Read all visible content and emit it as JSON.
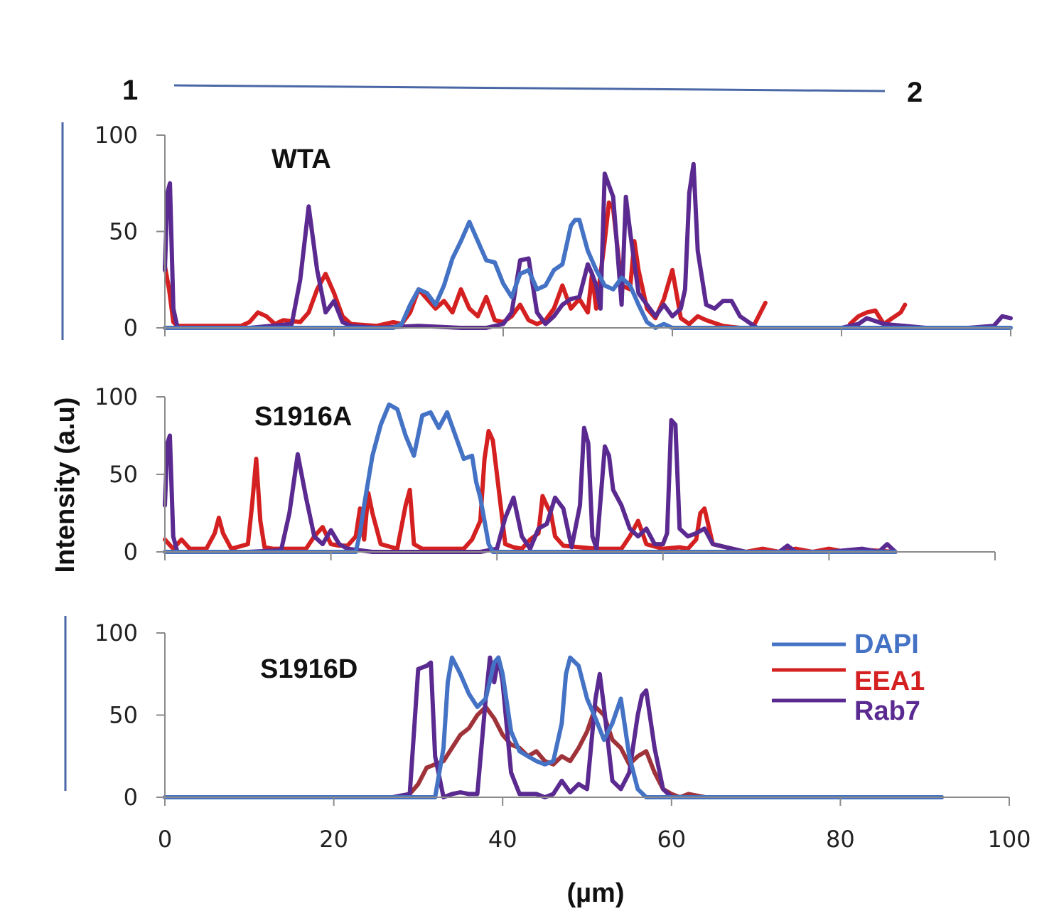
{
  "chart_data": {
    "type": "line",
    "xlabel": "(µm)",
    "ylabel": "Intensity (a.u)",
    "xlim": [
      0,
      100
    ],
    "x_ticks": [
      "0",
      "20",
      "40",
      "60",
      "80",
      "100"
    ],
    "line_markers": {
      "start": "1",
      "end": "2"
    },
    "legend": {
      "placement": "right of bottom panel",
      "entries": [
        {
          "name": "DAPI",
          "color": "#4472C4"
        },
        {
          "name": "EEA1",
          "color": "#D42020"
        },
        {
          "name": "Rab7",
          "color": "#5A2A91"
        }
      ]
    },
    "panels": [
      {
        "title": "WTA",
        "ylim": [
          0,
          100
        ],
        "y_ticks": [
          "0",
          "50",
          "100"
        ],
        "series": [
          {
            "name": "EEA1",
            "color": "#D42020",
            "x": [
              0,
              0.5,
              1,
              1.5,
              3,
              6,
              9,
              10,
              11,
              12,
              13,
              14,
              16,
              17,
              18,
              19,
              20,
              21,
              22,
              25,
              27,
              28,
              29,
              30,
              31,
              32,
              33,
              34,
              35,
              36,
              37,
              38,
              39,
              40,
              41,
              42,
              43,
              44,
              45,
              46,
              47,
              48,
              49,
              50,
              50.5,
              51,
              52,
              52.5,
              53,
              54,
              55,
              55.5,
              56,
              57,
              58,
              59,
              60,
              61,
              62,
              63,
              64,
              66,
              68,
              69.5,
              71
            ],
            "y": [
              32,
              20,
              3,
              1,
              1,
              1,
              1,
              3,
              8,
              6,
              2,
              4,
              3,
              8,
              20,
              28,
              18,
              6,
              2,
              1,
              3,
              2,
              8,
              20,
              15,
              10,
              14,
              8,
              20,
              10,
              6,
              16,
              4,
              3,
              6,
              12,
              4,
              2,
              4,
              10,
              22,
              10,
              15,
              8,
              28,
              10,
              45,
              65,
              62,
              22,
              20,
              45,
              30,
              10,
              5,
              15,
              30,
              5,
              2,
              6,
              4,
              1,
              0,
              0,
              13
            ]
          },
          {
            "name": "EEA1b",
            "color": "#D42020",
            "x": [
              81,
              82,
              83,
              84,
              85,
              86,
              87,
              87.5
            ],
            "y": [
              2,
              6,
              8,
              9,
              2,
              5,
              8,
              12
            ]
          },
          {
            "name": "Rab7",
            "color": "#5A2A91",
            "x": [
              0,
              0.3,
              0.6,
              1,
              1.5,
              3,
              10,
              15,
              16,
              17,
              18,
              19,
              20,
              21,
              22,
              25,
              30,
              35,
              38,
              40,
              41,
              42,
              43,
              44,
              45,
              46,
              47,
              48,
              49,
              50,
              50.5,
              51,
              51.5,
              52,
              53,
              54,
              54.5,
              55,
              56,
              57,
              58,
              59,
              60,
              61,
              61.5,
              62,
              62.5,
              63,
              64,
              65,
              66,
              67,
              68,
              70,
              80,
              82,
              83,
              85,
              90,
              95,
              98,
              99,
              100
            ],
            "y": [
              30,
              70,
              75,
              10,
              0,
              0,
              0,
              2,
              25,
              63,
              30,
              8,
              14,
              3,
              1,
              0,
              1,
              0,
              0,
              2,
              8,
              35,
              36,
              8,
              2,
              6,
              12,
              15,
              16,
              33,
              28,
              22,
              10,
              80,
              68,
              12,
              68,
              50,
              18,
              12,
              6,
              12,
              6,
              10,
              20,
              70,
              85,
              40,
              12,
              10,
              14,
              14,
              6,
              0,
              0,
              2,
              5,
              2,
              0,
              0,
              1,
              6,
              5
            ]
          },
          {
            "name": "DAPI",
            "color": "#4472C4",
            "x": [
              0,
              27,
              28,
              29,
              30,
              31,
              32,
              33,
              34,
              35,
              36,
              37,
              38,
              39,
              40,
              41,
              42,
              43,
              44,
              45,
              46,
              47,
              48,
              48.5,
              49,
              50,
              51,
              52,
              53,
              54,
              55,
              56,
              57,
              58,
              59,
              60,
              62,
              70,
              80,
              90,
              100
            ],
            "y": [
              0,
              0,
              2,
              12,
              20,
              18,
              12,
              22,
              36,
              45,
              55,
              45,
              35,
              34,
              23,
              16,
              28,
              30,
              20,
              22,
              30,
              33,
              53,
              56,
              56,
              40,
              30,
              22,
              20,
              26,
              22,
              12,
              3,
              0,
              2,
              0,
              0,
              0,
              0,
              0,
              0
            ]
          }
        ]
      },
      {
        "title": "S1916A",
        "ylim": [
          0,
          100
        ],
        "y_ticks": [
          "0",
          "50",
          "100"
        ],
        "series": [
          {
            "name": "EEA1",
            "color": "#D42020",
            "x": [
              0,
              0.5,
              1,
              2,
              3,
              5,
              6,
              6.5,
              7,
              8,
              10,
              10.5,
              11,
              11.5,
              12,
              13,
              14,
              15,
              17,
              18,
              19,
              20,
              21,
              22,
              23,
              23.5,
              24,
              24.5,
              25,
              26,
              28,
              29,
              29.5,
              30,
              31,
              33,
              35,
              36,
              37,
              38,
              38.5,
              39,
              39.5,
              40,
              41,
              42,
              43,
              44,
              45,
              45.5,
              46,
              46.5,
              47,
              48,
              50,
              52,
              55,
              56,
              57,
              58,
              60,
              62,
              63,
              64,
              64.5,
              65,
              66,
              70,
              72,
              74,
              76,
              78,
              80,
              82,
              85,
              88
            ],
            "y": [
              8,
              5,
              2,
              8,
              2,
              2,
              12,
              22,
              12,
              2,
              5,
              30,
              60,
              20,
              3,
              2,
              2,
              2,
              2,
              10,
              16,
              5,
              4,
              4,
              10,
              28,
              8,
              38,
              25,
              5,
              2,
              30,
              40,
              5,
              2,
              2,
              2,
              2,
              8,
              20,
              60,
              78,
              72,
              50,
              5,
              3,
              2,
              8,
              12,
              36,
              30,
              25,
              10,
              4,
              3,
              2,
              2,
              10,
              20,
              5,
              2,
              3,
              2,
              8,
              25,
              28,
              5,
              0,
              2,
              0,
              2,
              0,
              2,
              0,
              1,
              0
            ]
          },
          {
            "name": "Rab7",
            "color": "#5A2A91",
            "x": [
              0,
              0.3,
              0.6,
              1,
              1.5,
              3,
              10,
              14,
              15,
              16,
              17,
              18,
              19,
              20,
              21,
              22,
              25,
              30,
              35,
              38,
              40,
              41,
              42,
              43,
              44,
              45,
              46,
              47,
              48,
              49,
              50,
              50.5,
              51,
              51.5,
              52,
              53,
              53.5,
              54,
              55,
              56,
              57,
              58,
              59,
              60,
              60.5,
              61,
              61.5,
              62,
              63,
              64,
              65,
              66,
              70,
              74,
              75,
              76,
              80,
              84,
              86,
              87,
              88
            ],
            "y": [
              30,
              70,
              75,
              10,
              0,
              0,
              0,
              1,
              25,
              63,
              35,
              10,
              5,
              14,
              5,
              2,
              0,
              0,
              0,
              0,
              2,
              22,
              35,
              10,
              2,
              15,
              18,
              35,
              28,
              3,
              30,
              80,
              70,
              10,
              2,
              68,
              62,
              40,
              30,
              15,
              10,
              15,
              5,
              5,
              12,
              85,
              82,
              15,
              10,
              12,
              15,
              5,
              0,
              0,
              4,
              0,
              0,
              2,
              0,
              5,
              0
            ]
          },
          {
            "name": "DAPI",
            "color": "#4472C4",
            "x": [
              0,
              23,
              23.5,
              24,
              25,
              26,
              27,
              28,
              29,
              30,
              31,
              32,
              33,
              34,
              35,
              36,
              37,
              37.5,
              38,
              39,
              39.5,
              40,
              45,
              50,
              55,
              60,
              70,
              80,
              88
            ],
            "y": [
              0,
              0,
              12,
              30,
              62,
              82,
              95,
              92,
              75,
              62,
              88,
              90,
              80,
              90,
              75,
              60,
              62,
              45,
              35,
              5,
              0,
              0,
              0,
              0,
              0,
              0,
              0,
              0,
              0
            ]
          }
        ]
      },
      {
        "title": "S1916D",
        "ylim": [
          0,
          100
        ],
        "y_ticks": [
          "0",
          "50",
          "100"
        ],
        "series": [
          {
            "name": "EEA1",
            "color": "#A0333A",
            "x": [
              0,
              27,
              28,
              29,
              30,
              31,
              32,
              33,
              34,
              35,
              36,
              37,
              38,
              39,
              40,
              41,
              42,
              43,
              44,
              45,
              46,
              47,
              48,
              49,
              50,
              51,
              52,
              53,
              54,
              55,
              56,
              57,
              58,
              59,
              60,
              61,
              62,
              63,
              64,
              70,
              92
            ],
            "y": [
              0,
              0,
              1,
              2,
              8,
              18,
              20,
              22,
              30,
              38,
              42,
              50,
              55,
              48,
              38,
              32,
              30,
              25,
              28,
              22,
              20,
              25,
              22,
              30,
              40,
              55,
              50,
              35,
              30,
              20,
              25,
              28,
              15,
              5,
              2,
              0,
              2,
              1,
              0,
              0,
              0
            ]
          },
          {
            "name": "Rab7",
            "color": "#5A2A91",
            "x": [
              0,
              27,
              28,
              29,
              29.5,
              30,
              31,
              31.5,
              32,
              33,
              34,
              35,
              36,
              37,
              38,
              38.5,
              39,
              39.5,
              40,
              41,
              42,
              43,
              44,
              45,
              46,
              47,
              48,
              49,
              50,
              51,
              51.5,
              52,
              53,
              54,
              55,
              56,
              56.5,
              57,
              58,
              59,
              60,
              70,
              92
            ],
            "y": [
              0,
              0,
              1,
              2,
              40,
              78,
              80,
              82,
              25,
              0,
              2,
              3,
              2,
              2,
              60,
              85,
              70,
              85,
              70,
              15,
              2,
              2,
              2,
              0,
              2,
              10,
              3,
              8,
              5,
              60,
              75,
              55,
              10,
              5,
              15,
              50,
              62,
              65,
              30,
              5,
              0,
              0,
              0
            ]
          },
          {
            "name": "DAPI",
            "color": "#4472C4",
            "x": [
              0,
              32,
              33,
              33.5,
              34,
              35,
              36,
              37,
              38,
              39,
              39.5,
              40,
              41,
              42,
              43,
              44,
              45,
              46,
              47,
              47.5,
              48,
              49,
              50,
              51,
              52,
              53,
              54,
              55,
              56,
              57,
              60,
              70,
              80,
              92
            ],
            "y": [
              0,
              0,
              30,
              70,
              85,
              75,
              63,
              55,
              60,
              82,
              85,
              75,
              40,
              28,
              25,
              22,
              20,
              22,
              45,
              75,
              85,
              80,
              60,
              48,
              35,
              45,
              60,
              25,
              5,
              0,
              0,
              0,
              0,
              0
            ]
          }
        ]
      }
    ]
  }
}
